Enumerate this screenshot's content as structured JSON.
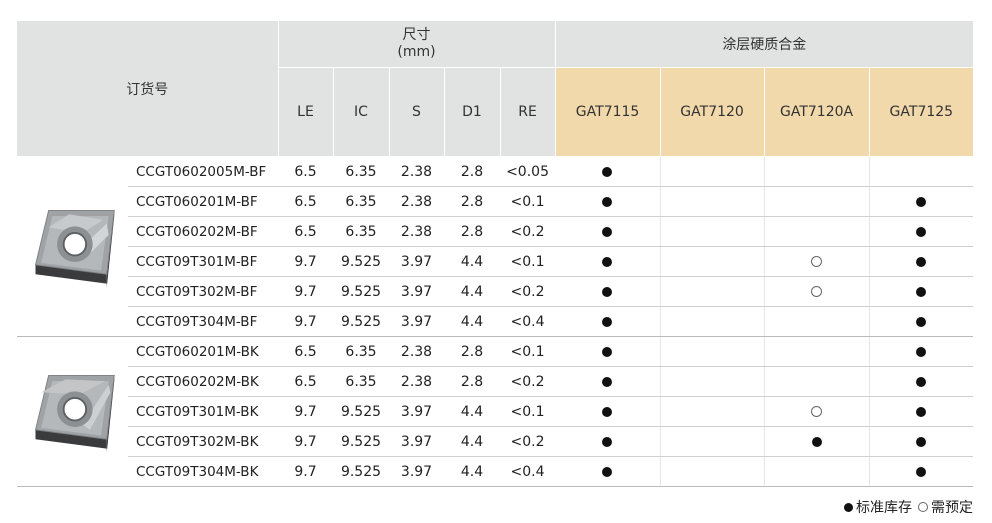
{
  "header": {
    "order_no": "订货号",
    "dimension_group": "尺寸",
    "dimension_unit": "(mm)",
    "grade_group": "涂层硬质合金",
    "dim_cols": [
      "LE",
      "IC",
      "S",
      "D1",
      "RE"
    ],
    "grade_cols": [
      "GAT7115",
      "GAT7120",
      "GAT7120A",
      "GAT7125"
    ]
  },
  "groups": [
    {
      "image_icon": "ccgt-insert-bf-icon",
      "rows": [
        {
          "code": "CCGT0602005M-BF",
          "dims": [
            "6.5",
            "6.35",
            "2.38",
            "2.8",
            "<0.05"
          ],
          "grades": [
            "stock",
            "",
            "",
            ""
          ]
        },
        {
          "code": "CCGT060201M-BF",
          "dims": [
            "6.5",
            "6.35",
            "2.38",
            "2.8",
            "<0.1"
          ],
          "grades": [
            "stock",
            "",
            "",
            "stock"
          ]
        },
        {
          "code": "CCGT060202M-BF",
          "dims": [
            "6.5",
            "6.35",
            "2.38",
            "2.8",
            "<0.2"
          ],
          "grades": [
            "stock",
            "",
            "",
            "stock"
          ]
        },
        {
          "code": "CCGT09T301M-BF",
          "dims": [
            "9.7",
            "9.525",
            "3.97",
            "4.4",
            "<0.1"
          ],
          "grades": [
            "stock",
            "",
            "order",
            "stock"
          ]
        },
        {
          "code": "CCGT09T302M-BF",
          "dims": [
            "9.7",
            "9.525",
            "3.97",
            "4.4",
            "<0.2"
          ],
          "grades": [
            "stock",
            "",
            "order",
            "stock"
          ]
        },
        {
          "code": "CCGT09T304M-BF",
          "dims": [
            "9.7",
            "9.525",
            "3.97",
            "4.4",
            "<0.4"
          ],
          "grades": [
            "stock",
            "",
            "",
            "stock"
          ]
        }
      ]
    },
    {
      "image_icon": "ccgt-insert-bk-icon",
      "rows": [
        {
          "code": "CCGT060201M-BK",
          "dims": [
            "6.5",
            "6.35",
            "2.38",
            "2.8",
            "<0.1"
          ],
          "grades": [
            "stock",
            "",
            "",
            "stock"
          ]
        },
        {
          "code": "CCGT060202M-BK",
          "dims": [
            "6.5",
            "6.35",
            "2.38",
            "2.8",
            "<0.2"
          ],
          "grades": [
            "stock",
            "",
            "",
            "stock"
          ]
        },
        {
          "code": "CCGT09T301M-BK",
          "dims": [
            "9.7",
            "9.525",
            "3.97",
            "4.4",
            "<0.1"
          ],
          "grades": [
            "stock",
            "",
            "order",
            "stock"
          ]
        },
        {
          "code": "CCGT09T302M-BK",
          "dims": [
            "9.7",
            "9.525",
            "3.97",
            "4.4",
            "<0.2"
          ],
          "grades": [
            "stock",
            "",
            "stock",
            "stock"
          ]
        },
        {
          "code": "CCGT09T304M-BK",
          "dims": [
            "9.7",
            "9.525",
            "3.97",
            "4.4",
            "<0.4"
          ],
          "grades": [
            "stock",
            "",
            "",
            "stock"
          ]
        }
      ]
    }
  ],
  "legend": {
    "stock_label": "标准库存",
    "order_label": "需预定"
  },
  "colors": {
    "header_bg": "#e1e2e2",
    "grade_header_bg": "#f2d9ab"
  }
}
